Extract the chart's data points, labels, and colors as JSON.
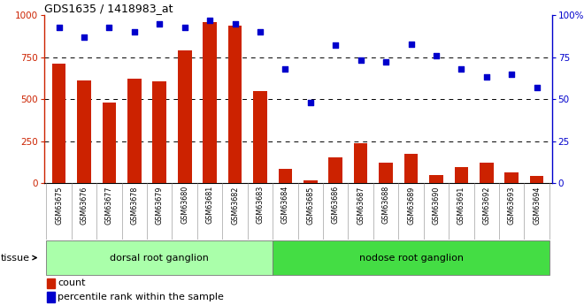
{
  "title": "GDS1635 / 1418983_at",
  "categories": [
    "GSM63675",
    "GSM63676",
    "GSM63677",
    "GSM63678",
    "GSM63679",
    "GSM63680",
    "GSM63681",
    "GSM63682",
    "GSM63683",
    "GSM63684",
    "GSM63685",
    "GSM63686",
    "GSM63687",
    "GSM63688",
    "GSM63689",
    "GSM63690",
    "GSM63691",
    "GSM63692",
    "GSM63693",
    "GSM63694"
  ],
  "bar_values": [
    710,
    610,
    480,
    620,
    605,
    790,
    960,
    940,
    550,
    85,
    15,
    155,
    235,
    120,
    175,
    50,
    95,
    120,
    65,
    40
  ],
  "dot_values": [
    93,
    87,
    93,
    90,
    95,
    93,
    97,
    95,
    90,
    68,
    48,
    82,
    73,
    72,
    83,
    76,
    68,
    63,
    65,
    57
  ],
  "bar_color": "#cc2200",
  "dot_color": "#0000cc",
  "ylim_left": [
    0,
    1000
  ],
  "ylim_right": [
    0,
    100
  ],
  "yticks_left": [
    0,
    250,
    500,
    750,
    1000
  ],
  "yticks_right": [
    0,
    25,
    50,
    75,
    100
  ],
  "group1_count": 9,
  "group1_label": "dorsal root ganglion",
  "group2_label": "nodose root ganglion",
  "group1_color": "#aaffaa",
  "group2_color": "#44dd44",
  "tissue_label": "tissue",
  "legend_bar": "count",
  "legend_dot": "percentile rank within the sample",
  "xtick_bg": "#cccccc",
  "plot_bg": "#ffffff"
}
